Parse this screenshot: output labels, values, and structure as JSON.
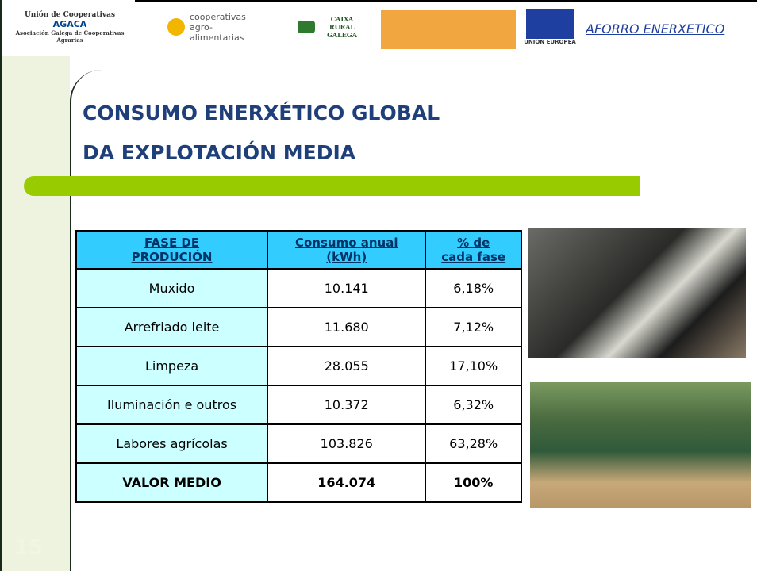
{
  "header": {
    "logos": [
      "Unión de Cooperativas",
      "AGACA",
      "Asociación Galega de Cooperativas Agrarias",
      "cooperativas agro-alimentarias",
      "CAIXA RURAL GALEGA",
      "UNIÓN EUROPEA"
    ],
    "tag": "AFORRO ENERXETICO"
  },
  "title": [
    "CONSUMO ENERXÉTICO GLOBAL",
    "DA EXPLOTACIÓN MEDIA"
  ],
  "table": {
    "header": [
      [
        "FASE DE",
        "PRODUCIÓN"
      ],
      [
        "Consumo anual",
        "(kWh)"
      ],
      [
        "% de",
        "cada fase"
      ]
    ],
    "rows": [
      [
        "Muxido",
        "10.141",
        "6,18%"
      ],
      [
        "Arrefriado leite",
        "11.680",
        "7,12%"
      ],
      [
        "Limpeza",
        "28.055",
        "17,10%"
      ],
      [
        "Iluminación e outros",
        "10.372",
        "6,32%"
      ],
      [
        "Labores agrícolas",
        "103.826",
        "63,28%"
      ],
      [
        "VALOR MEDIO",
        "164.074",
        "100%"
      ]
    ]
  },
  "slide_number": "15"
}
